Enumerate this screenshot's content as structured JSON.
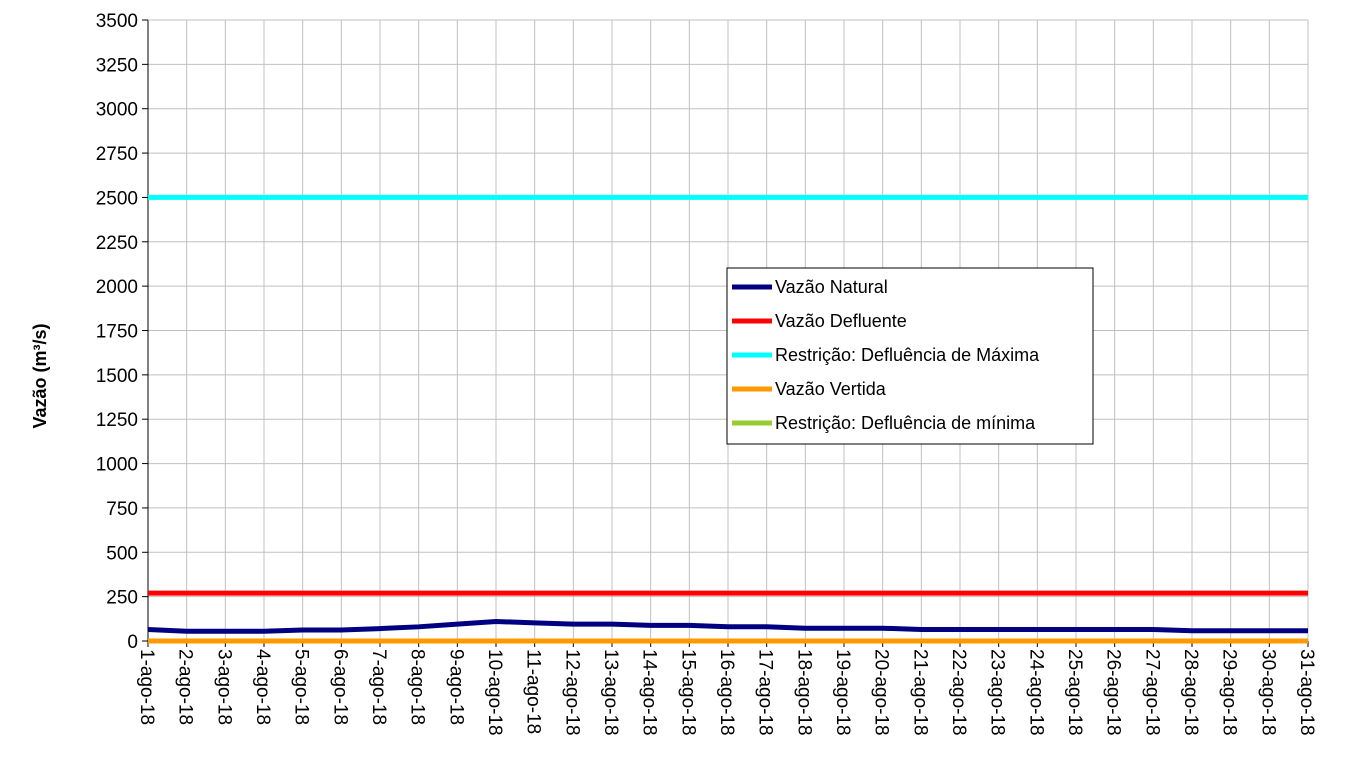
{
  "chart_data": {
    "type": "line",
    "title": "",
    "xlabel": "",
    "ylabel": "Vazão (m³/s)",
    "ylim": [
      0,
      3500
    ],
    "yticks": [
      0,
      250,
      500,
      750,
      1000,
      1250,
      1500,
      1750,
      2000,
      2250,
      2500,
      2750,
      3000,
      3250,
      3500
    ],
    "grid": true,
    "legend_position": "center-right",
    "categories": [
      "1-ago-18",
      "2-ago-18",
      "3-ago-18",
      "4-ago-18",
      "5-ago-18",
      "6-ago-18",
      "7-ago-18",
      "8-ago-18",
      "9-ago-18",
      "10-ago-18",
      "11-ago-18",
      "12-ago-18",
      "13-ago-18",
      "14-ago-18",
      "15-ago-18",
      "16-ago-18",
      "17-ago-18",
      "18-ago-18",
      "19-ago-18",
      "20-ago-18",
      "21-ago-18",
      "22-ago-18",
      "23-ago-18",
      "24-ago-18",
      "25-ago-18",
      "26-ago-18",
      "27-ago-18",
      "28-ago-18",
      "29-ago-18",
      "30-ago-18",
      "31-ago-18"
    ],
    "series": [
      {
        "name": "Vazão Natural",
        "color": "#000080",
        "values": [
          65,
          55,
          55,
          55,
          62,
          62,
          70,
          80,
          95,
          110,
          102,
          95,
          95,
          88,
          88,
          80,
          80,
          72,
          72,
          72,
          65,
          65,
          65,
          65,
          65,
          65,
          65,
          58,
          58,
          58,
          58
        ]
      },
      {
        "name": "Vazão Defluente",
        "color": "#ff0000",
        "values": [
          270,
          270,
          270,
          270,
          270,
          270,
          270,
          270,
          270,
          270,
          270,
          270,
          270,
          270,
          270,
          270,
          270,
          270,
          270,
          270,
          270,
          270,
          270,
          270,
          270,
          270,
          270,
          270,
          270,
          270,
          270
        ]
      },
      {
        "name": "Restrição: Defluência de Máxima",
        "color": "#00ffff",
        "values": [
          2500,
          2500,
          2500,
          2500,
          2500,
          2500,
          2500,
          2500,
          2500,
          2500,
          2500,
          2500,
          2500,
          2500,
          2500,
          2500,
          2500,
          2500,
          2500,
          2500,
          2500,
          2500,
          2500,
          2500,
          2500,
          2500,
          2500,
          2500,
          2500,
          2500,
          2500
        ]
      },
      {
        "name": "Vazão Vertida",
        "color": "#ff9900",
        "values": [
          0,
          0,
          0,
          0,
          0,
          0,
          0,
          0,
          0,
          0,
          0,
          0,
          0,
          0,
          0,
          0,
          0,
          0,
          0,
          0,
          0,
          0,
          0,
          0,
          0,
          0,
          0,
          0,
          0,
          0,
          0
        ]
      },
      {
        "name": "Restrição: Defluência de mínima",
        "color": "#99cc33",
        "values": [
          0,
          0,
          0,
          0,
          0,
          0,
          0,
          0,
          0,
          0,
          0,
          0,
          0,
          0,
          0,
          0,
          0,
          0,
          0,
          0,
          0,
          0,
          0,
          0,
          0,
          0,
          0,
          0,
          0,
          0,
          0
        ]
      }
    ]
  }
}
